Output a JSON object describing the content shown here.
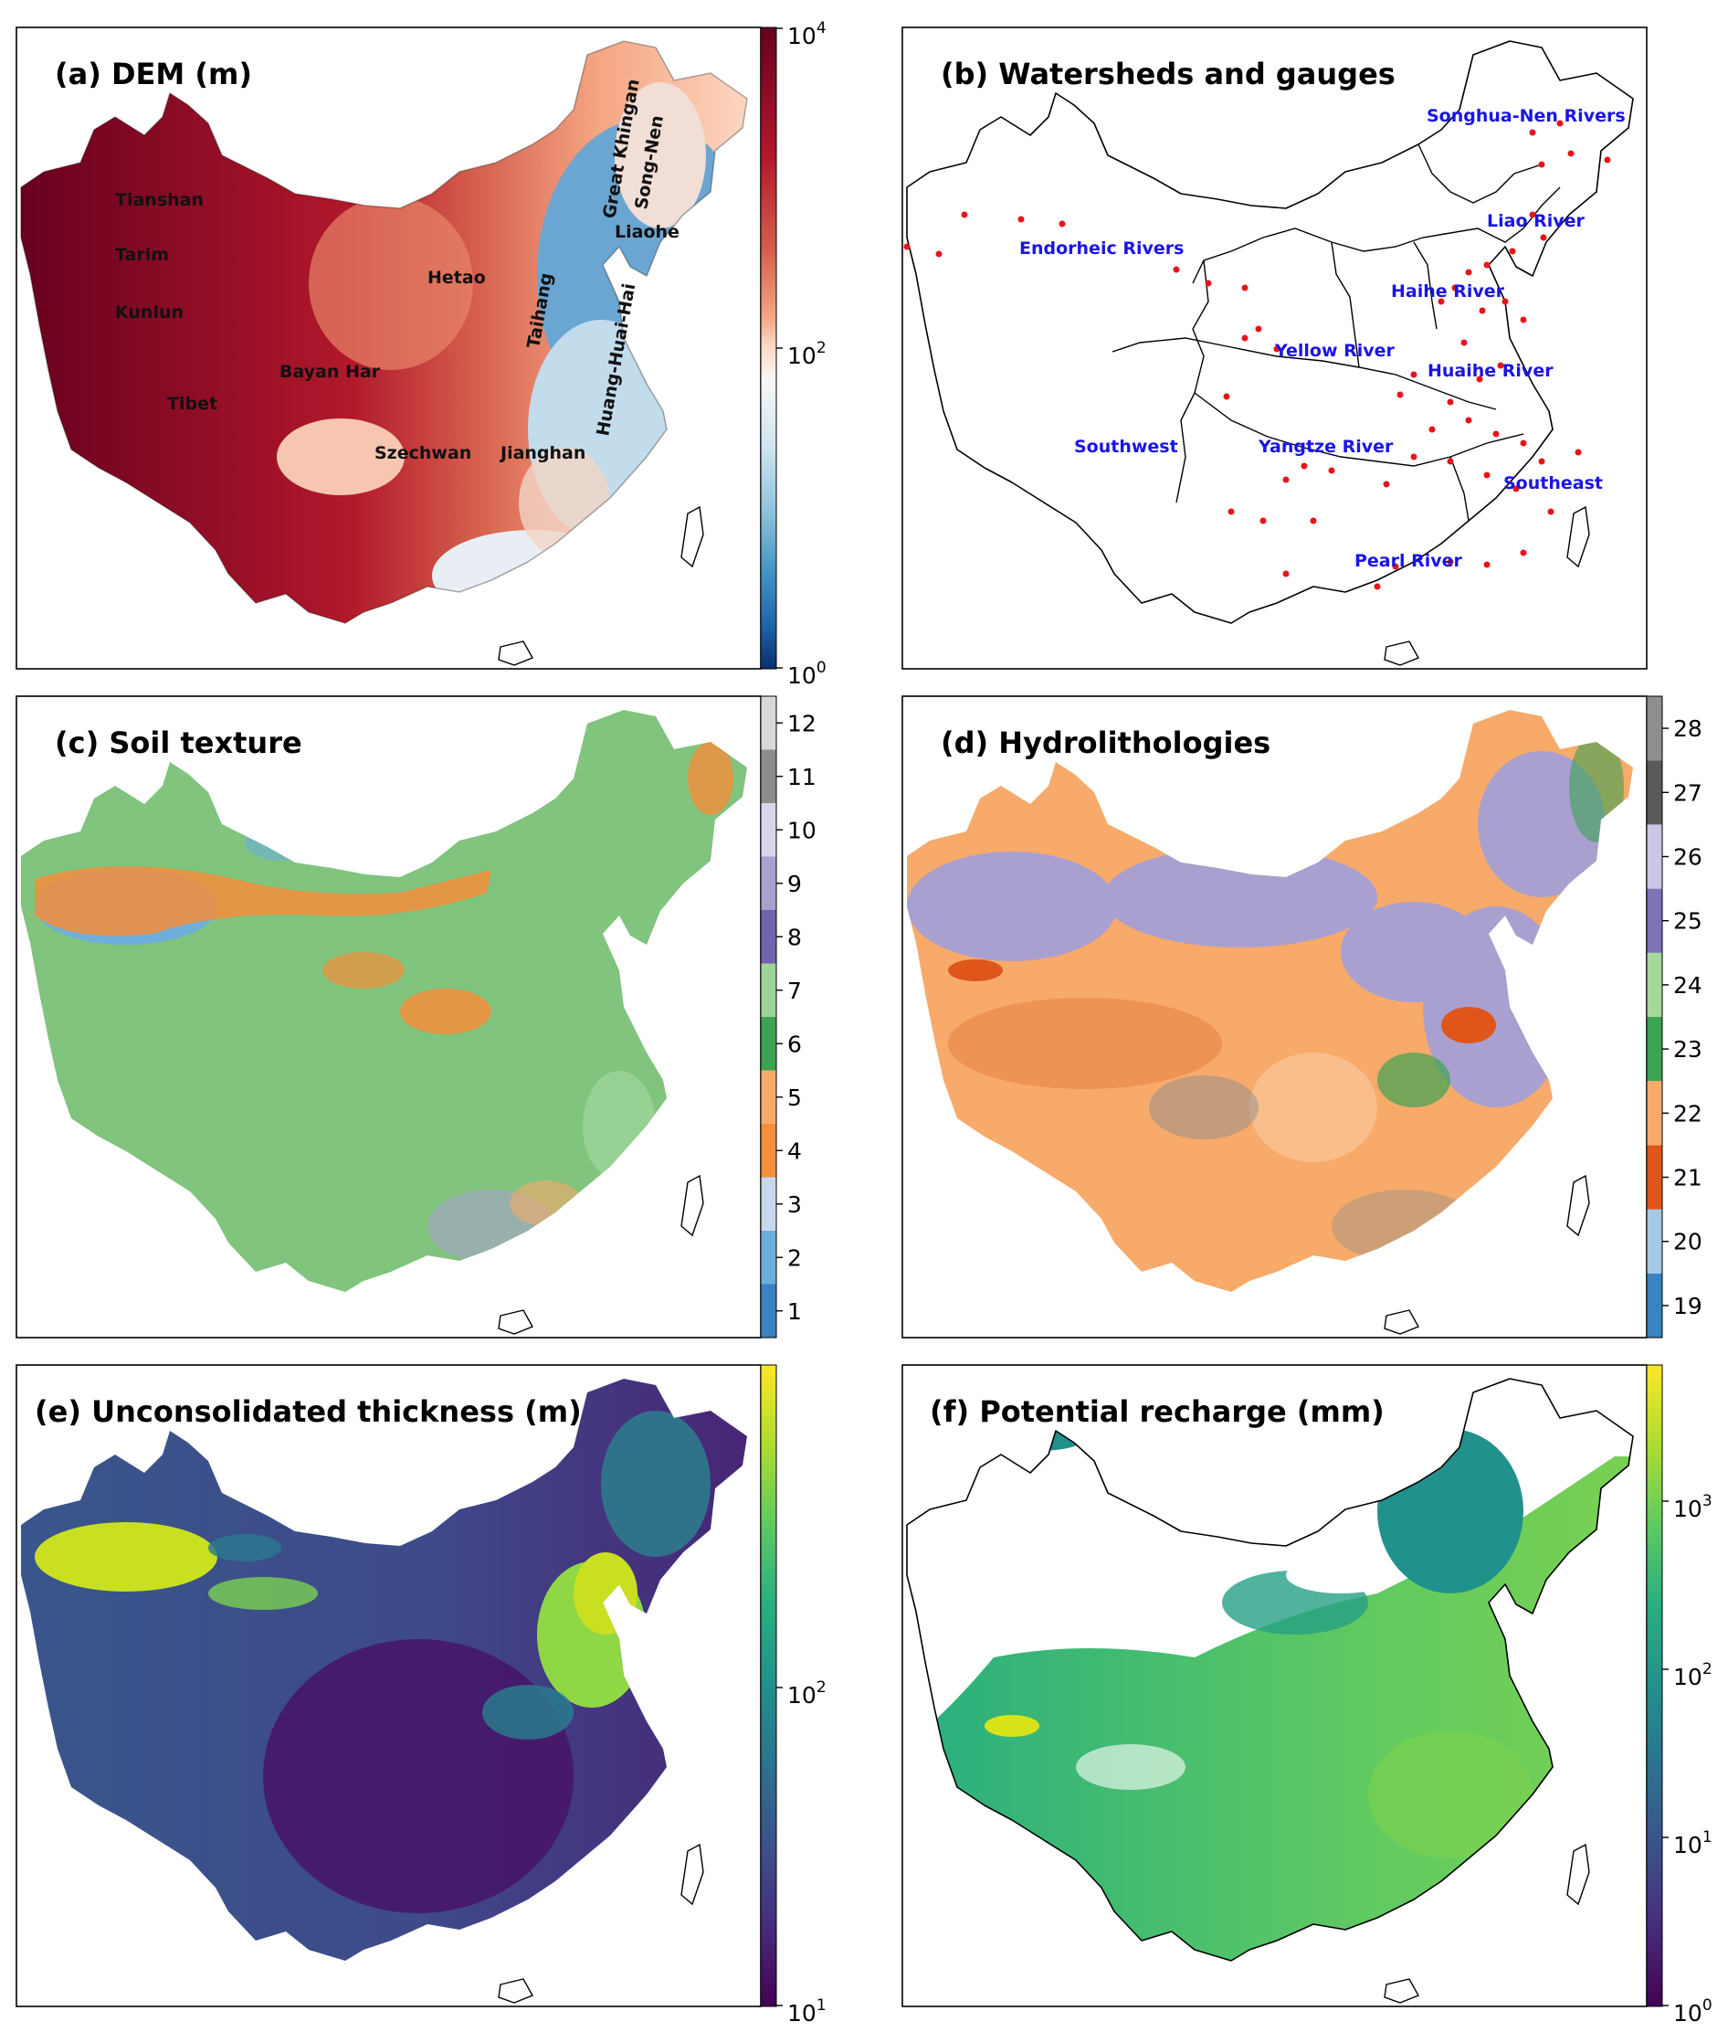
{
  "colors": {
    "rdbu": [
      "#08306b",
      "#2166ac",
      "#4393c3",
      "#92c5de",
      "#d1e5f0",
      "#f7f7f7",
      "#fddbc7",
      "#f4a582",
      "#d6604d",
      "#b2182b",
      "#67001f"
    ],
    "viridis": [
      "#440154",
      "#472d7b",
      "#3b528b",
      "#2c728e",
      "#21918c",
      "#28ae80",
      "#5ec962",
      "#addc30",
      "#fde725"
    ],
    "gauge": "#e8141a",
    "basin_text": "#1a14e6",
    "soil_classes": [
      "#3a82c0",
      "#6eaedc",
      "#c8d8ec",
      "#f48e3a",
      "#f7aa6a",
      "#3da352",
      "#9cd49a",
      "#7164ac",
      "#a9a0d0",
      "#d8d7ea",
      "#8c8c8c",
      "#d8d8d8"
    ],
    "hydro_classes": [
      "#3a82c0",
      "#a4c8e6",
      "#e0551a",
      "#f7aa6a",
      "#3da352",
      "#a5d99b",
      "#7e72b8",
      "#c9c7e3",
      "#5a5a5a",
      "#8e8e8e",
      "#d8d8d8"
    ]
  },
  "panels": {
    "a": {
      "title": "(a) DEM (m)",
      "labels": [
        "Tianshan",
        "Tarim",
        "Kunlun",
        "Tibet",
        "Bayan Har",
        "Hetao",
        "Taihang",
        "Huang-Huai-Hai",
        "Great Khingan",
        "Song-Nen",
        "Liaohe",
        "Szechwan",
        "Jianghan"
      ],
      "colorbar": {
        "scale": "log",
        "min": 1,
        "max": 10000,
        "ticks": [
          {
            "base": "10",
            "exp": "4"
          },
          {
            "base": "10",
            "exp": "2"
          },
          {
            "base": "10",
            "exp": "0"
          }
        ]
      }
    },
    "b": {
      "title": "(b) Watersheds and gauges",
      "basins": [
        "Songhua-Nen Rivers",
        "Liao River",
        "Endorheic Rivers",
        "Haihe River",
        "Yellow River",
        "Huaihe River",
        "Southwest",
        "Yangtze River",
        "Southeast",
        "Pearl River"
      ]
    },
    "c": {
      "title": "(c) Soil texture",
      "colorbar": {
        "type": "categorical",
        "classes": [
          "1",
          "2",
          "3",
          "4",
          "5",
          "6",
          "7",
          "8",
          "9",
          "10",
          "11",
          "12"
        ]
      }
    },
    "d": {
      "title": "(d) Hydrolithologies",
      "colorbar": {
        "type": "categorical",
        "classes": [
          "19",
          "20",
          "21",
          "22",
          "23",
          "24",
          "25",
          "26",
          "27",
          "28"
        ]
      }
    },
    "e": {
      "title": "(e) Unconsolidated thickness (m)",
      "colorbar": {
        "scale": "log",
        "min": 10,
        "max": 1000,
        "ticks": [
          {
            "base": "10",
            "exp": "2"
          },
          {
            "base": "10",
            "exp": "1"
          }
        ]
      }
    },
    "f": {
      "title": "(f) Potential recharge (mm)",
      "colorbar": {
        "scale": "log",
        "min": 1,
        "max": 5000,
        "ticks": [
          {
            "base": "10",
            "exp": "3"
          },
          {
            "base": "10",
            "exp": "2"
          },
          {
            "base": "10",
            "exp": "1"
          },
          {
            "base": "10",
            "exp": "0"
          }
        ]
      }
    }
  }
}
